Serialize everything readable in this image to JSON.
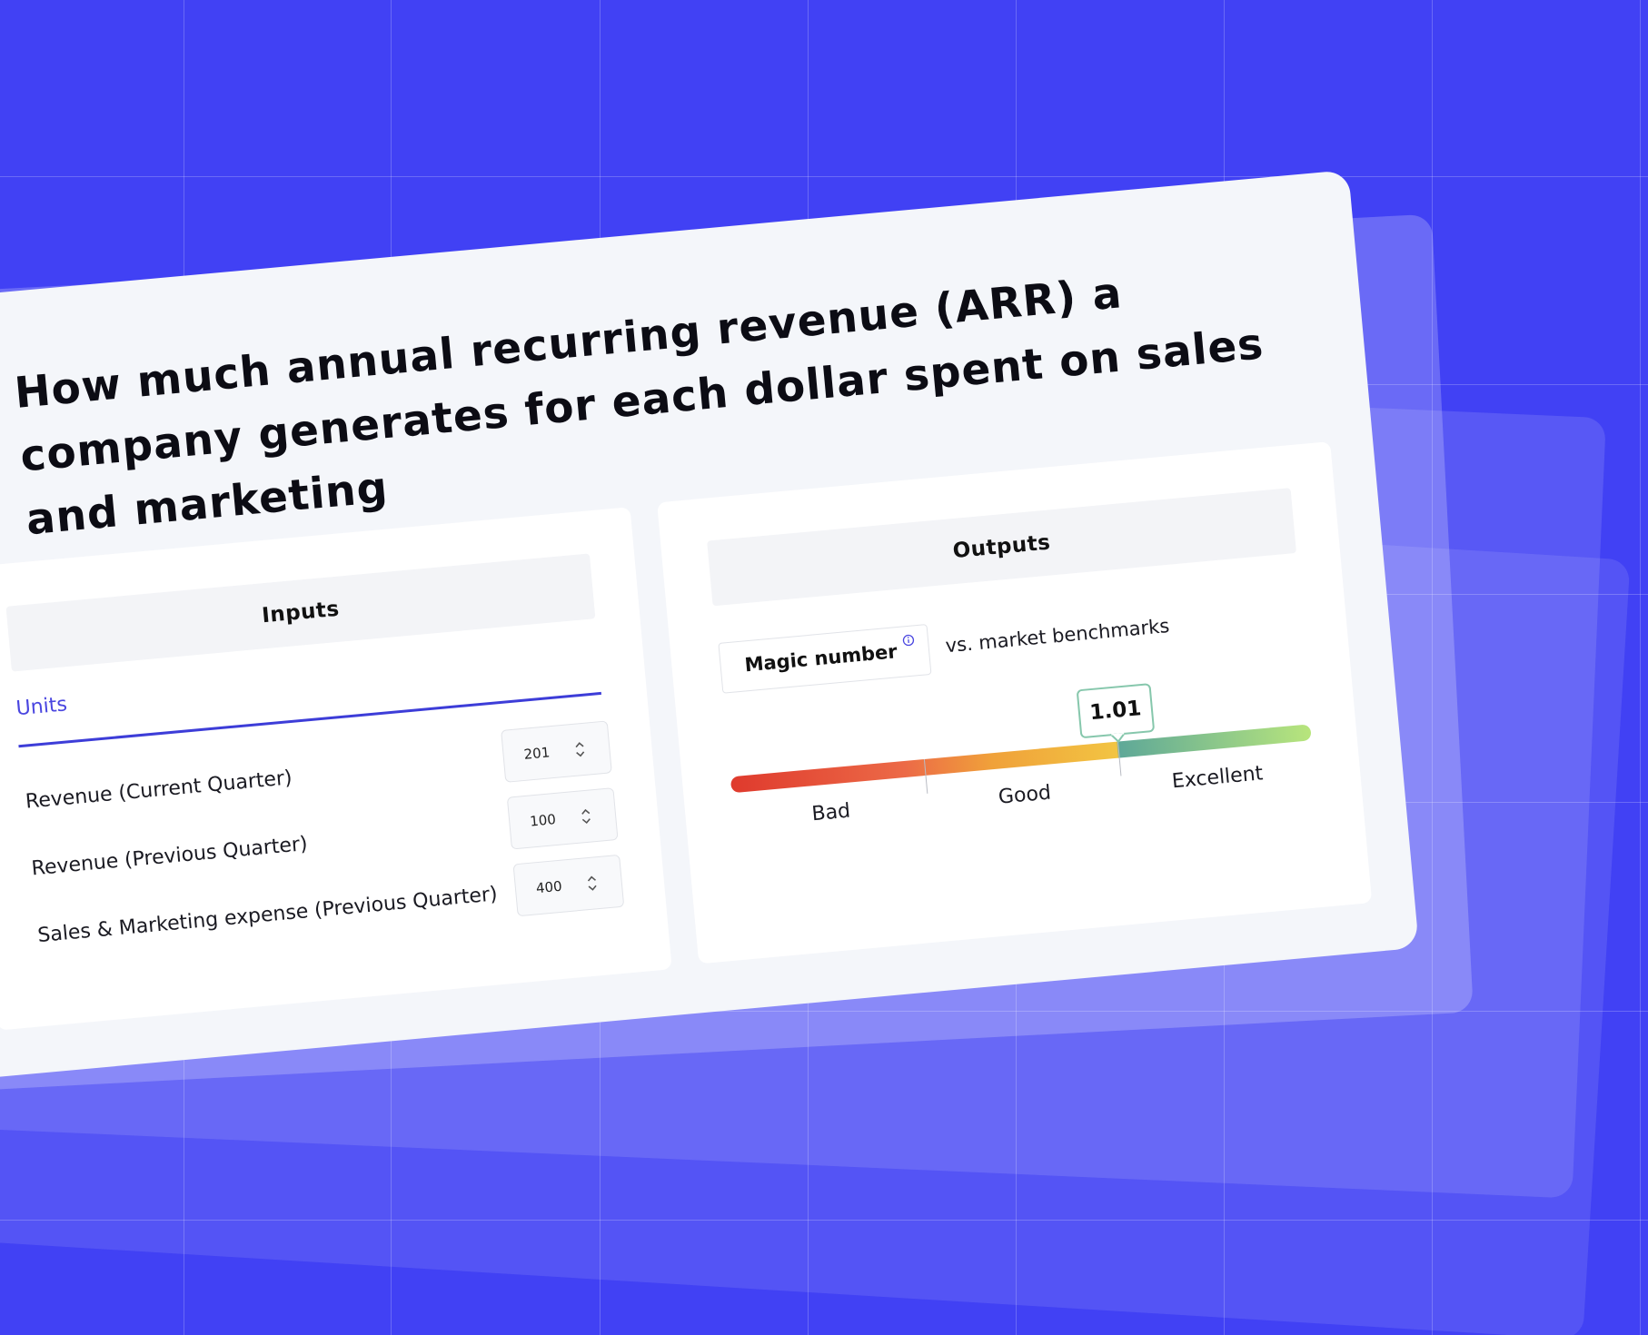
{
  "header": {
    "title": "How much annual recurring revenue (ARR) a company generates for each dollar spent on sales and marketing"
  },
  "inputs": {
    "title": "Inputs",
    "tab": "Units",
    "fields": [
      {
        "label": "Revenue (Current Quarter)",
        "value": 201
      },
      {
        "label": "Revenue (Previous Quarter)",
        "value": 100
      },
      {
        "label": "Sales & Marketing expense (Previous Quarter)",
        "value": 400
      }
    ]
  },
  "outputs": {
    "title": "Outputs",
    "metric": "Magic number",
    "comparison": "vs. market benchmarks",
    "value": 1.01,
    "scale": [
      "Bad",
      "Good",
      "Excellent"
    ]
  }
}
